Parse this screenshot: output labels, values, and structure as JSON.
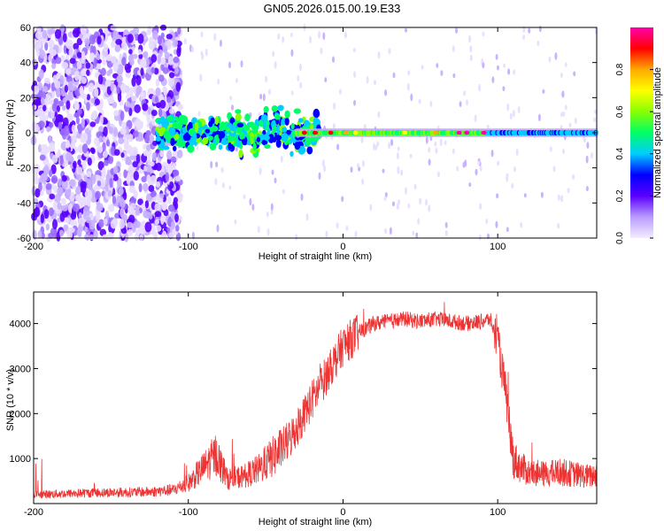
{
  "title": "GN05.2026.015.00.19.E33",
  "chart_data": [
    {
      "type": "heatmap",
      "xlabel": "Height of straight line (km)",
      "ylabel": "Frequency (Hz)",
      "xlim": [
        -200,
        164
      ],
      "ylim": [
        -60,
        60
      ],
      "x_ticks": [
        "-200",
        "-100",
        "0",
        "100"
      ],
      "y_ticks": [
        "60",
        "40",
        "20",
        "0",
        "-20",
        "-40",
        "-60"
      ],
      "colorbar": {
        "label": "Normalized spectral amplitude",
        "range": [
          0,
          1
        ],
        "ticks": [
          "0.0",
          "0.2",
          "0.4",
          "0.6",
          "0.8"
        ],
        "stops": [
          "#f4ecff",
          "#b99cff",
          "#5a00ff",
          "#0000ff",
          "#00ccff",
          "#00ff66",
          "#88ff00",
          "#ffff00",
          "#ffaa00",
          "#ff0000",
          "#ff00aa"
        ]
      },
      "features": {
        "noise_region_x": [
          -200,
          -105
        ],
        "noise_cluster_x": [
          -120,
          -15
        ],
        "signal_band_x": [
          -30,
          164
        ],
        "signal_band_center_hz": 0,
        "peak_x": [
          -30,
          92
        ]
      }
    },
    {
      "type": "line",
      "xlabel": "Height of straight line (km)",
      "ylabel": "SNR (10 * v/v)",
      "xlim": [
        -200,
        164
      ],
      "ylim": [
        0,
        4700
      ],
      "x_ticks": [
        "-200",
        "-100",
        "0",
        "100"
      ],
      "y_ticks": [
        "4000",
        "3000",
        "2000",
        "1000"
      ],
      "color": "#ee3333",
      "series": [
        {
          "x": [
            -200,
            -180,
            -160,
            -140,
            -125,
            -110,
            -100,
            -90,
            -82,
            -75,
            -65,
            -55,
            -45,
            -35,
            -28,
            -25,
            -20,
            -15,
            -10,
            -5,
            0,
            10,
            20,
            30,
            40,
            50,
            60,
            70,
            80,
            90,
            95,
            100,
            105,
            110,
            115,
            120,
            130,
            140,
            150,
            160,
            164
          ],
          "y": [
            200,
            220,
            240,
            250,
            260,
            300,
            450,
            800,
            1100,
            550,
            600,
            750,
            1050,
            1400,
            1800,
            2000,
            2300,
            2600,
            2900,
            3200,
            3500,
            3800,
            4000,
            4050,
            4100,
            4050,
            4100,
            4050,
            4000,
            4050,
            4100,
            3600,
            2500,
            1000,
            800,
            700,
            650,
            700,
            650,
            600,
            650
          ]
        }
      ]
    }
  ]
}
